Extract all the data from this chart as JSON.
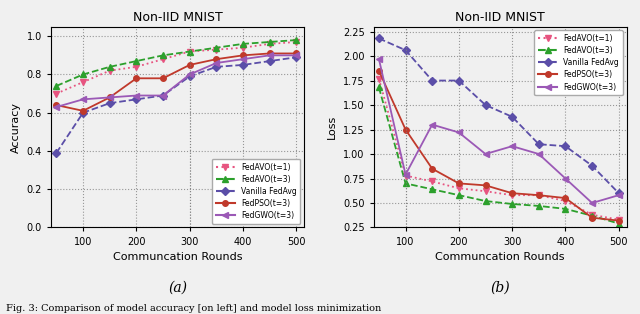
{
  "title": "Non-IID MNIST",
  "rounds": [
    50,
    100,
    150,
    200,
    250,
    300,
    350,
    400,
    450,
    500
  ],
  "acc_fedavo_t1": [
    0.7,
    0.76,
    0.82,
    0.84,
    0.88,
    0.92,
    0.93,
    0.94,
    0.96,
    0.97
  ],
  "acc_fedavo_t3": [
    0.74,
    0.8,
    0.84,
    0.87,
    0.9,
    0.92,
    0.94,
    0.96,
    0.97,
    0.98
  ],
  "acc_vanilla": [
    0.39,
    0.6,
    0.65,
    0.67,
    0.69,
    0.79,
    0.84,
    0.85,
    0.87,
    0.89
  ],
  "acc_fedpso_t3": [
    0.64,
    0.61,
    0.68,
    0.78,
    0.78,
    0.85,
    0.88,
    0.9,
    0.91,
    0.91
  ],
  "acc_fedgwo_t3": [
    0.63,
    0.67,
    0.68,
    0.69,
    0.69,
    0.8,
    0.86,
    0.88,
    0.9,
    0.9
  ],
  "loss_fedavo_t1": [
    1.77,
    0.78,
    0.72,
    0.65,
    0.62,
    0.58,
    0.58,
    0.52,
    0.38,
    0.33
  ],
  "loss_fedavo_t3": [
    1.68,
    0.7,
    0.64,
    0.58,
    0.52,
    0.49,
    0.47,
    0.44,
    0.37,
    0.29
  ],
  "loss_vanilla": [
    2.18,
    2.06,
    1.75,
    1.75,
    1.5,
    1.38,
    1.1,
    1.08,
    0.88,
    0.6
  ],
  "loss_fedpso_t3": [
    1.85,
    1.25,
    0.85,
    0.7,
    0.68,
    0.6,
    0.58,
    0.55,
    0.35,
    0.32
  ],
  "loss_fedgwo_t3": [
    1.97,
    0.79,
    1.3,
    1.22,
    1.0,
    1.08,
    1.0,
    0.75,
    0.5,
    0.58
  ],
  "color_fedavo_t1": "#e75480",
  "color_fedavo_t3": "#2ca02c",
  "color_vanilla": "#5b4ea8",
  "color_fedpso_t3": "#c0392b",
  "color_fedgwo_t3": "#9b59b6",
  "xlabel": "Communcation Rounds",
  "ylabel_acc": "Accuracy",
  "ylabel_loss": "Loss",
  "caption_a": "(a)",
  "caption_b": "(b)",
  "fig_caption": "Fig. 3: Comparison of model accuracy [on left] and model loss minimization"
}
